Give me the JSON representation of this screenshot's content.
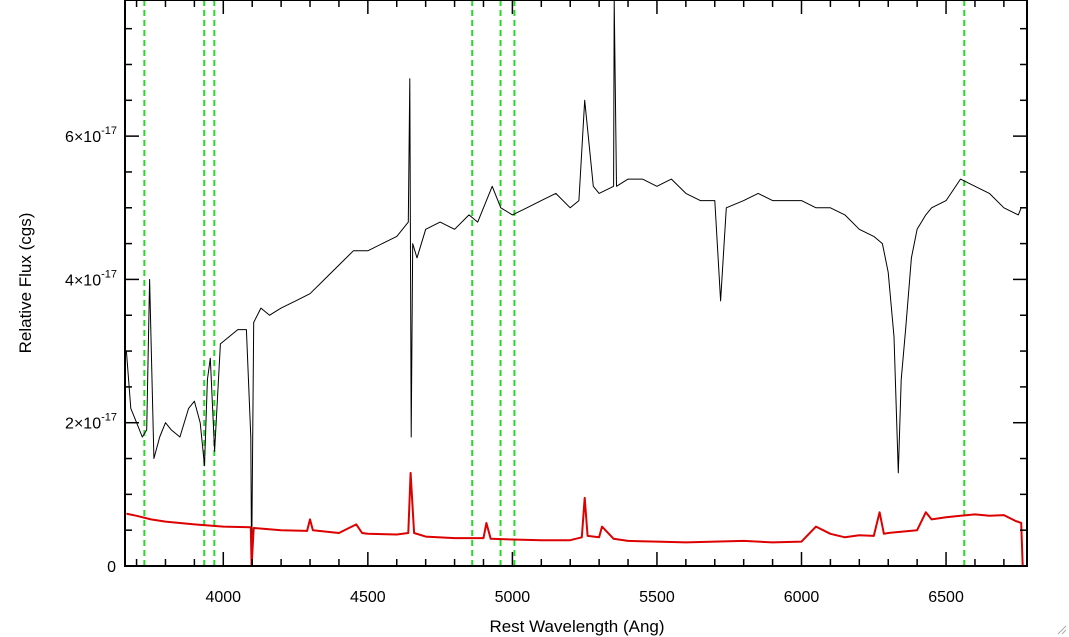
{
  "chart_data": {
    "type": "line",
    "title": "",
    "xlabel": "Rest Wavelength (Ang)",
    "ylabel": "Relative Flux (cgs)",
    "xlim": [
      3660,
      6780
    ],
    "ylim": [
      0,
      7.9e-17
    ],
    "x_ticks": [
      {
        "value": 4000,
        "label": "4000"
      },
      {
        "value": 4500,
        "label": "4500"
      },
      {
        "value": 5000,
        "label": "5000"
      },
      {
        "value": 5500,
        "label": "5500"
      },
      {
        "value": 6000,
        "label": "6000"
      },
      {
        "value": 6500,
        "label": "6500"
      }
    ],
    "y_ticks": [
      {
        "value": 0,
        "mantissa": "0",
        "exponent": ""
      },
      {
        "value": 2e-17,
        "mantissa": "2×10",
        "exponent": "-17"
      },
      {
        "value": 4e-17,
        "mantissa": "4×10",
        "exponent": "-17"
      },
      {
        "value": 6e-17,
        "mantissa": "6×10",
        "exponent": "-17"
      }
    ],
    "grid": false,
    "series": [
      {
        "color": "#000000",
        "x": [
          3665,
          3680,
          3700,
          3720,
          3735,
          3745,
          3760,
          3780,
          3800,
          3820,
          3850,
          3880,
          3900,
          3920,
          3935,
          3945,
          3955,
          3970,
          3990,
          4020,
          4050,
          4080,
          4095,
          4098,
          4105,
          4130,
          4160,
          4200,
          4250,
          4300,
          4350,
          4400,
          4450,
          4500,
          4550,
          4600,
          4640,
          4645,
          4650,
          4655,
          4670,
          4700,
          4750,
          4800,
          4850,
          4880,
          4900,
          4930,
          4960,
          5000,
          5050,
          5100,
          5150,
          5200,
          5230,
          5250,
          5280,
          5300,
          5350,
          5352,
          5360,
          5400,
          5450,
          5500,
          5550,
          5600,
          5650,
          5700,
          5720,
          5740,
          5800,
          5850,
          5900,
          5950,
          6000,
          6050,
          6100,
          6150,
          6200,
          6250,
          6280,
          6300,
          6320,
          6335,
          6345,
          6360,
          6380,
          6400,
          6430,
          6450,
          6500,
          6550,
          6600,
          6650,
          6700,
          6750,
          6760
        ],
        "y": [
          3e-17,
          2.2e-17,
          2e-17,
          1.8e-17,
          1.9e-17,
          4e-17,
          1.5e-17,
          1.8e-17,
          2e-17,
          1.9e-17,
          1.8e-17,
          2.2e-17,
          2.3e-17,
          2e-17,
          1.4e-17,
          2.6e-17,
          2.9e-17,
          1.6e-17,
          3.1e-17,
          3.2e-17,
          3.3e-17,
          3.3e-17,
          1.8e-17,
          0,
          3.4e-17,
          3.6e-17,
          3.5e-17,
          3.6e-17,
          3.7e-17,
          3.8e-17,
          4e-17,
          4.2e-17,
          4.4e-17,
          4.4e-17,
          4.5e-17,
          4.6e-17,
          4.8e-17,
          6.8e-17,
          1.8e-17,
          4.5e-17,
          4.3e-17,
          4.7e-17,
          4.8e-17,
          4.7e-17,
          4.9e-17,
          4.8e-17,
          5e-17,
          5.3e-17,
          5e-17,
          4.9e-17,
          5e-17,
          5.1e-17,
          5.2e-17,
          5e-17,
          5.1e-17,
          6.5e-17,
          5.3e-17,
          5.2e-17,
          5.3e-17,
          7.9e-17,
          5.3e-17,
          5.4e-17,
          5.4e-17,
          5.3e-17,
          5.4e-17,
          5.2e-17,
          5.1e-17,
          5.1e-17,
          3.7e-17,
          5e-17,
          5.1e-17,
          5.2e-17,
          5.1e-17,
          5.1e-17,
          5.1e-17,
          5e-17,
          5e-17,
          4.9e-17,
          4.7e-17,
          4.6e-17,
          4.5e-17,
          4.1e-17,
          3.2e-17,
          1.3e-17,
          2.6e-17,
          3.3e-17,
          4.3e-17,
          4.7e-17,
          4.9e-17,
          5e-17,
          5.1e-17,
          5.4e-17,
          5.3e-17,
          5.2e-17,
          5e-17,
          4.9e-17,
          5e-17
        ]
      },
      {
        "color": "#dd0000",
        "x": [
          3665,
          3700,
          3750,
          3800,
          3900,
          4000,
          4095,
          4098,
          4105,
          4200,
          4290,
          4300,
          4310,
          4400,
          4460,
          4480,
          4500,
          4600,
          4640,
          4648,
          4660,
          4700,
          4800,
          4900,
          4910,
          4925,
          5000,
          5100,
          5200,
          5240,
          5250,
          5260,
          5300,
          5310,
          5350,
          5400,
          5500,
          5600,
          5700,
          5800,
          5900,
          6000,
          6050,
          6100,
          6150,
          6200,
          6250,
          6270,
          6285,
          6300,
          6400,
          6430,
          6450,
          6500,
          6550,
          6600,
          6650,
          6700,
          6740,
          6760,
          6765,
          6770
        ],
        "y": [
          7.3e-18,
          7e-18,
          6.5e-18,
          6.2e-18,
          5.8e-18,
          5.5e-18,
          5.4e-18,
          0,
          5.3e-18,
          5e-18,
          4.9e-18,
          6.5e-18,
          5e-18,
          4.6e-18,
          5.8e-18,
          4.6e-18,
          4.5e-18,
          4.4e-18,
          4.6e-18,
          1.3e-17,
          4.6e-18,
          4.1e-18,
          3.9e-18,
          3.9e-18,
          6e-18,
          3.8e-18,
          3.7e-18,
          3.6e-18,
          3.6e-18,
          4e-18,
          9.5e-18,
          4.2e-18,
          4e-18,
          5.5e-18,
          3.8e-18,
          3.5e-18,
          3.4e-18,
          3.3e-18,
          3.4e-18,
          3.5e-18,
          3.3e-18,
          3.4e-18,
          5.5e-18,
          4.5e-18,
          4e-18,
          4.3e-18,
          4.2e-18,
          7.5e-18,
          4.5e-18,
          4.6e-18,
          5e-18,
          7.5e-18,
          6.5e-18,
          6.8e-18,
          7e-18,
          7.2e-18,
          7e-18,
          7.1e-18,
          6.3e-18,
          6e-18,
          0,
          0
        ]
      }
    ],
    "annotations": {
      "vertical_lines": {
        "color": "#22dd22",
        "style": "dashed",
        "x": [
          3727,
          3934,
          3969,
          4861,
          4959,
          5007,
          6563
        ]
      }
    }
  }
}
